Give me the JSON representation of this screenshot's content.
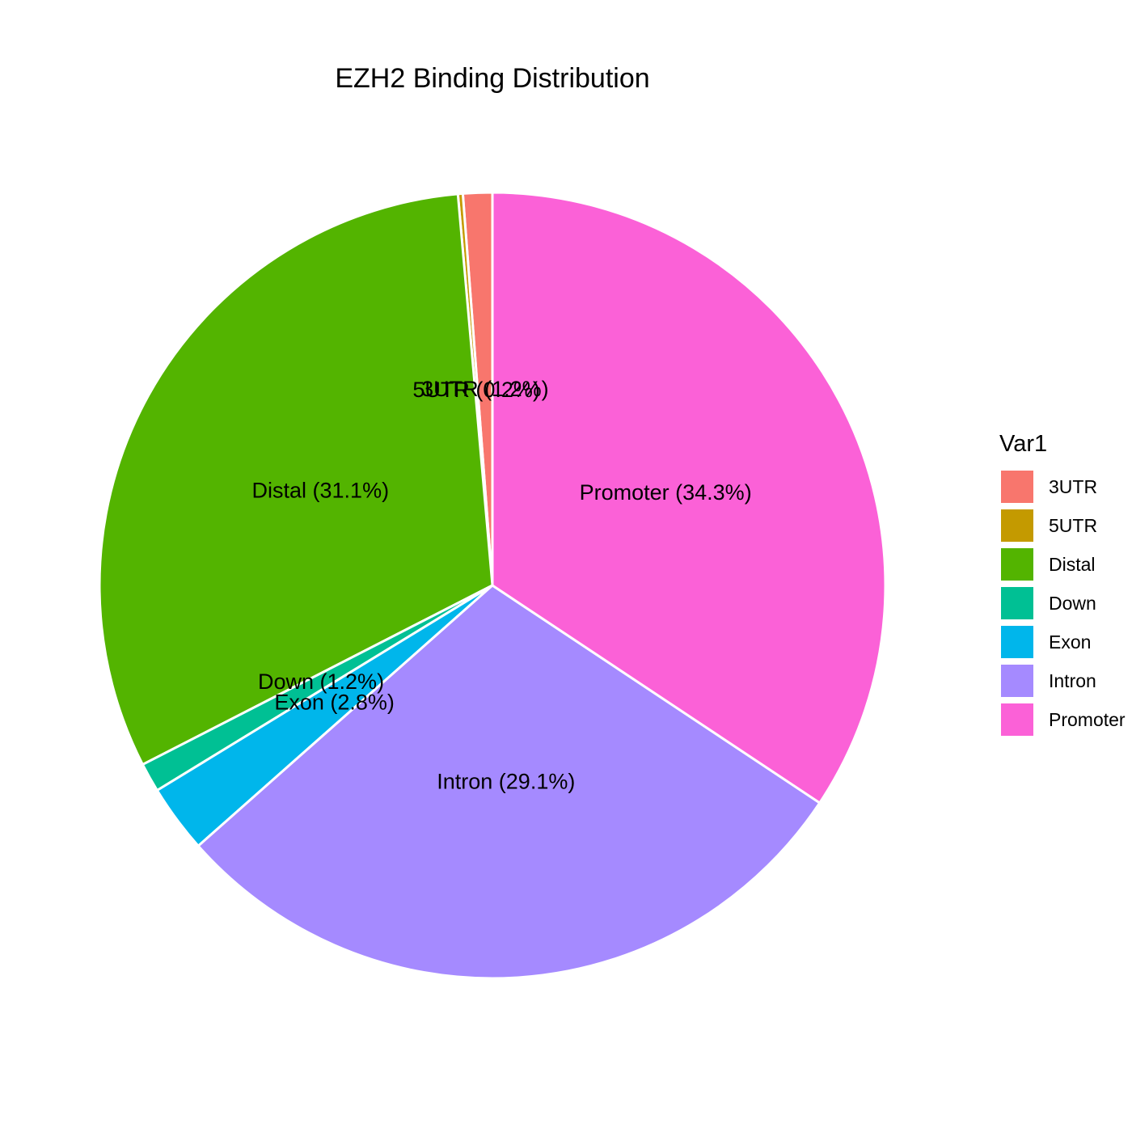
{
  "chart_data": {
    "type": "pie",
    "title": "EZH2 Binding Distribution",
    "legend_title": "Var1",
    "legend_position": "right",
    "slices": [
      {
        "name": "3UTR",
        "label": "3UTR (1.2%)",
        "value": 1.2,
        "color": "#F8766D"
      },
      {
        "name": "5UTR",
        "label": "5UTR (0.2%)",
        "value": 0.2,
        "color": "#C49A00"
      },
      {
        "name": "Distal",
        "label": "Distal (31.1%)",
        "value": 31.1,
        "color": "#53B400"
      },
      {
        "name": "Down",
        "label": "Down (1.2%)",
        "value": 1.2,
        "color": "#00C094"
      },
      {
        "name": "Exon",
        "label": "Exon (2.8%)",
        "value": 2.8,
        "color": "#00B6EB"
      },
      {
        "name": "Intron",
        "label": "Intron (29.1%)",
        "value": 29.1,
        "color": "#A58AFF"
      },
      {
        "name": "Promoter",
        "label": "Promoter (34.3%)",
        "value": 34.3,
        "color": "#FB61D7"
      }
    ]
  }
}
